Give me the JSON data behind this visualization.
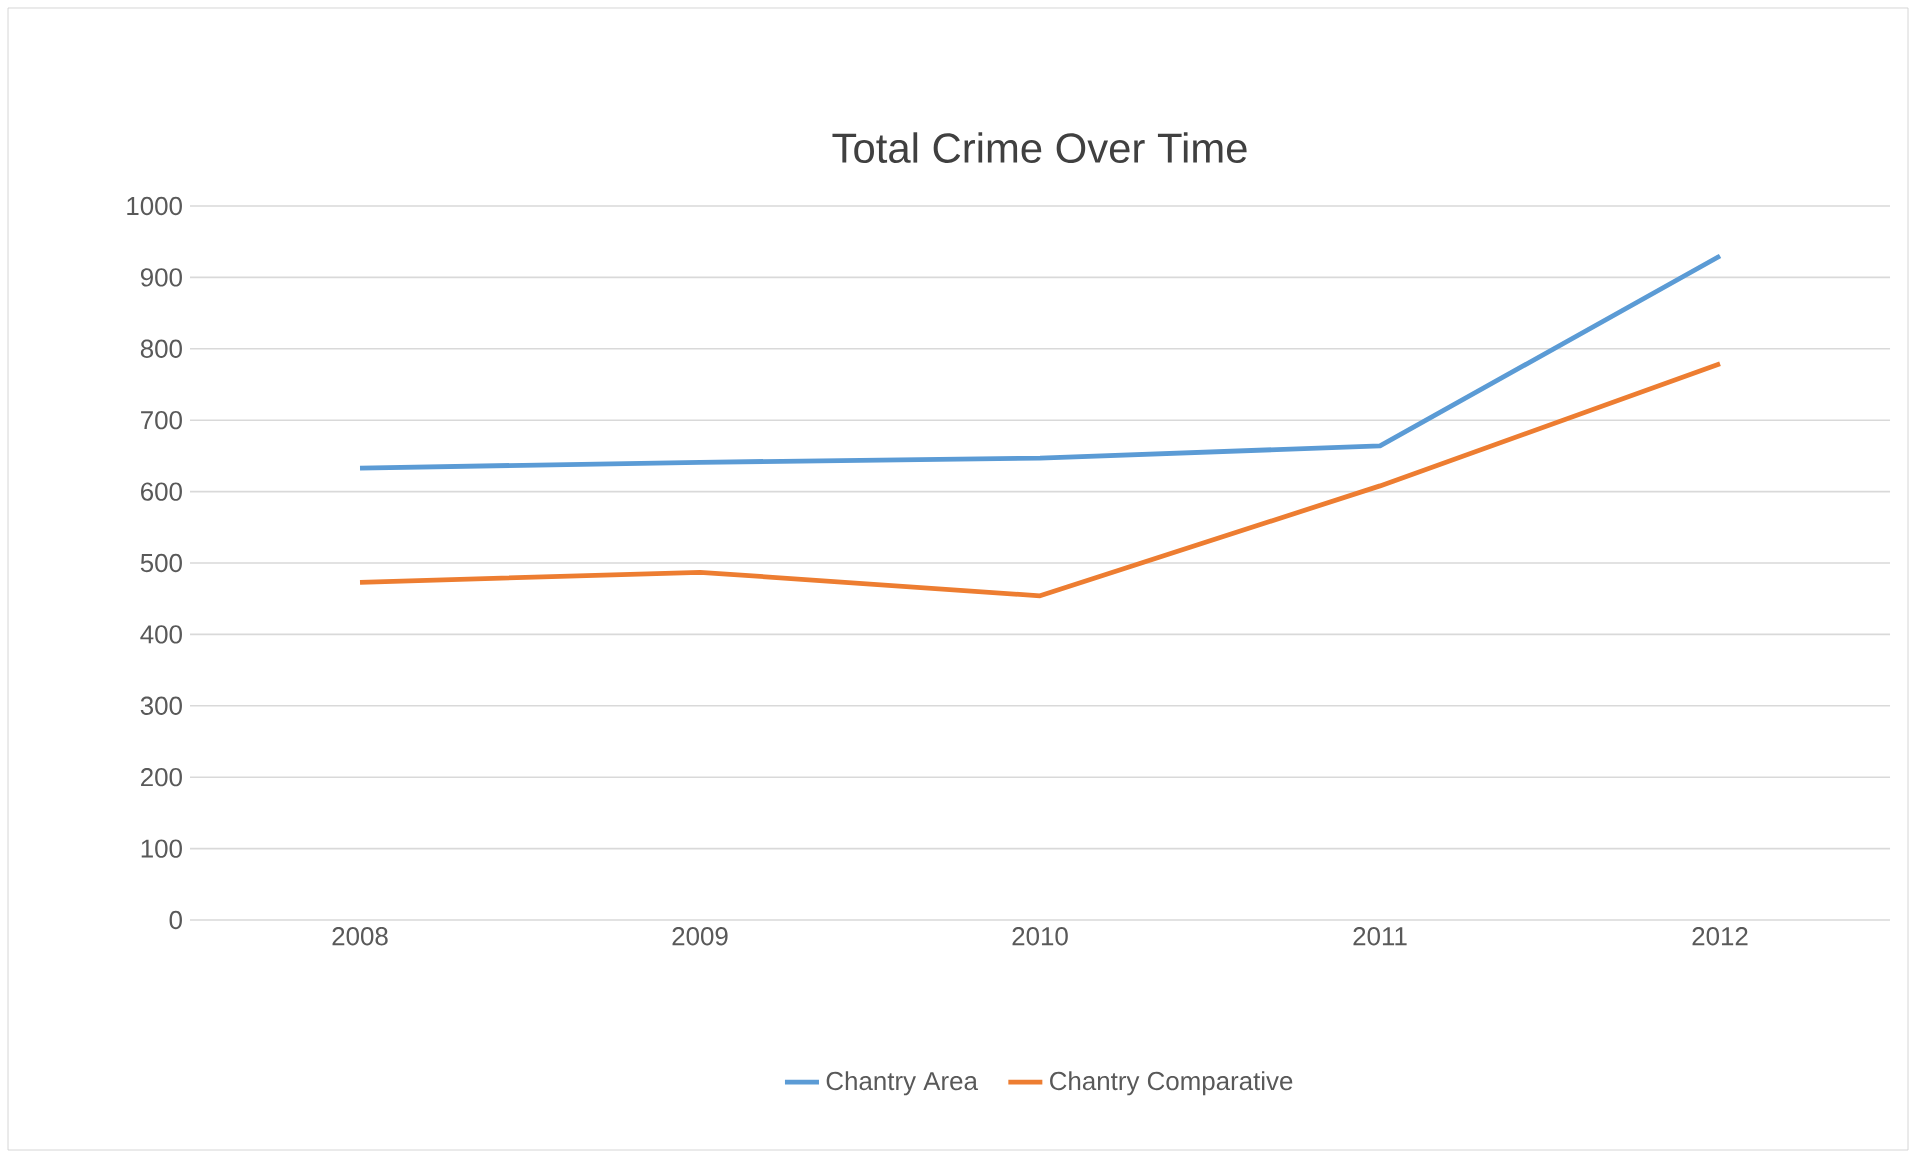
{
  "chart_data": {
    "type": "line",
    "title": "Total Crime Over Time",
    "categories": [
      "2008",
      "2009",
      "2010",
      "2011",
      "2012"
    ],
    "series": [
      {
        "name": "Chantry Area",
        "color": "#5b9bd5",
        "values": [
          633,
          641,
          647,
          664,
          930
        ]
      },
      {
        "name": "Chantry Comparative",
        "color": "#ed7d31",
        "values": [
          473,
          487,
          454,
          608,
          779
        ]
      }
    ],
    "ylim": [
      0,
      1000
    ],
    "yticks": [
      0,
      100,
      200,
      300,
      400,
      500,
      600,
      700,
      800,
      900,
      1000
    ],
    "grid": "y",
    "legend": "bottom",
    "marker": "none",
    "line_style": "solid"
  }
}
